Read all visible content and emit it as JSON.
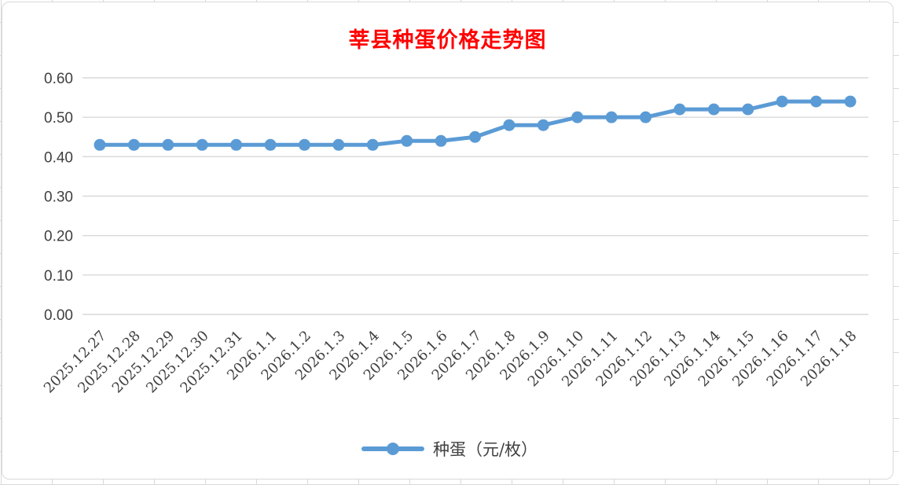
{
  "title": {
    "text": "莘县种蛋价格走势图",
    "color": "#FF0000"
  },
  "legend": {
    "label": "种蛋（元/枚）"
  },
  "colors": {
    "line": "#5B9BD5",
    "grid": "#D9D9D9",
    "axis_text": "#404040",
    "title": "#FF0000",
    "chart_border": "#D9D9D9",
    "background": "#FFFFFF"
  },
  "chart_data": {
    "type": "line",
    "title": "莘县种蛋价格走势图",
    "xlabel": "",
    "ylabel": "",
    "ylim": [
      0,
      0.6
    ],
    "ytick_step": 0.1,
    "ytick_labels": [
      "0.00",
      "0.10",
      "0.20",
      "0.30",
      "0.40",
      "0.50",
      "0.60"
    ],
    "grid": true,
    "legend_position": "bottom",
    "x_label_rotation": -45,
    "marker": "circle",
    "categories": [
      "2025.12.27",
      "2025.12.28",
      "2025.12.29",
      "2025.12.30",
      "2025.12.31",
      "2026.1.1",
      "2026.1.2",
      "2026.1.3",
      "2026.1.4",
      "2026.1.5",
      "2026.1.6",
      "2026.1.7",
      "2026.1.8",
      "2026.1.9",
      "2026.1.10",
      "2026.1.11",
      "2026.1.12",
      "2026.1.13",
      "2026.1.14",
      "2026.1.15",
      "2026.1.16",
      "2026.1.17",
      "2026.1.18"
    ],
    "series": [
      {
        "name": "种蛋（元/枚）",
        "color": "#5B9BD5",
        "values": [
          0.43,
          0.43,
          0.43,
          0.43,
          0.43,
          0.43,
          0.43,
          0.43,
          0.43,
          0.44,
          0.44,
          0.45,
          0.48,
          0.48,
          0.5,
          0.5,
          0.5,
          0.52,
          0.52,
          0.52,
          0.54,
          0.54,
          0.54
        ]
      }
    ]
  }
}
